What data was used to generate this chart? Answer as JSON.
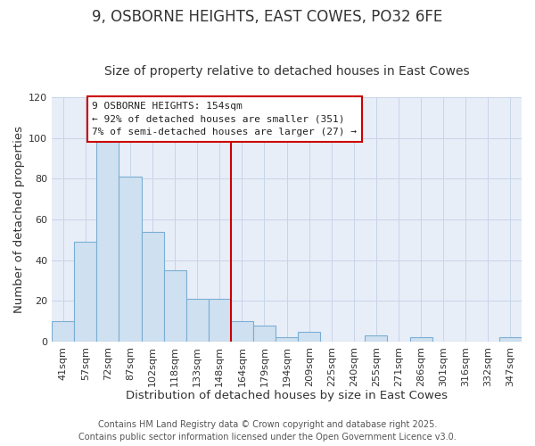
{
  "title": "9, OSBORNE HEIGHTS, EAST COWES, PO32 6FE",
  "subtitle": "Size of property relative to detached houses in East Cowes",
  "xlabel": "Distribution of detached houses by size in East Cowes",
  "ylabel": "Number of detached properties",
  "bar_labels": [
    "41sqm",
    "57sqm",
    "72sqm",
    "87sqm",
    "102sqm",
    "118sqm",
    "133sqm",
    "148sqm",
    "164sqm",
    "179sqm",
    "194sqm",
    "209sqm",
    "225sqm",
    "240sqm",
    "255sqm",
    "271sqm",
    "286sqm",
    "301sqm",
    "316sqm",
    "332sqm",
    "347sqm"
  ],
  "bar_values": [
    10,
    49,
    100,
    81,
    54,
    35,
    21,
    21,
    10,
    8,
    2,
    5,
    0,
    0,
    3,
    0,
    2,
    0,
    0,
    0,
    2
  ],
  "bar_color": "#cfe0f0",
  "bar_edge_color": "#7aaed4",
  "vline_x": 7.5,
  "vline_color": "#cc0000",
  "ylim": [
    0,
    120
  ],
  "yticks": [
    0,
    20,
    40,
    60,
    80,
    100,
    120
  ],
  "annotation_title": "9 OSBORNE HEIGHTS: 154sqm",
  "annotation_line1": "← 92% of detached houses are smaller (351)",
  "annotation_line2": "7% of semi-detached houses are larger (27) →",
  "footer1": "Contains HM Land Registry data © Crown copyright and database right 2025.",
  "footer2": "Contains public sector information licensed under the Open Government Licence v3.0.",
  "bg_color": "#ffffff",
  "plot_bg_color": "#e8eef8",
  "grid_color": "#c8d4e8",
  "title_fontsize": 12,
  "subtitle_fontsize": 10,
  "axis_label_fontsize": 9.5,
  "tick_fontsize": 8,
  "annotation_fontsize": 8,
  "footer_fontsize": 7
}
